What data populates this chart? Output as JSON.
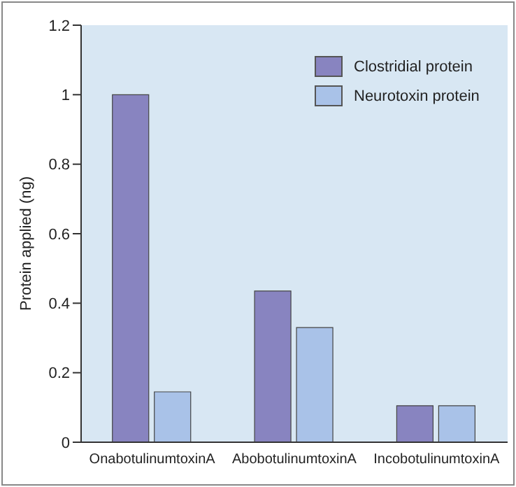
{
  "chart_data": {
    "type": "bar",
    "ylabel": "Protein applied (ng)",
    "categories": [
      "OnabotulinumtoxinA",
      "AbobotulinumtoxinA",
      "IncobotulinumtoxinA"
    ],
    "series": [
      {
        "name": "Clostridial protein",
        "color": "#8884c0",
        "values": [
          1.0,
          0.435,
          0.105
        ]
      },
      {
        "name": "Neurotoxin protein",
        "color": "#a9c2e8",
        "values": [
          0.145,
          0.33,
          0.105
        ]
      }
    ],
    "ylim": [
      0,
      1.2
    ],
    "yticks": [
      0,
      0.2,
      0.4,
      0.6,
      0.8,
      1,
      1.2
    ],
    "grid": false,
    "legend": "top right"
  }
}
